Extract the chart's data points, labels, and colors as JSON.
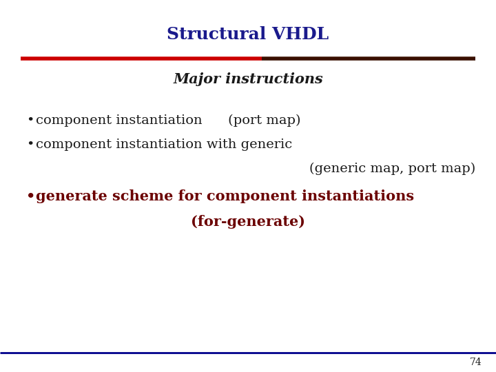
{
  "title": "Structural VHDL",
  "title_color": "#1a1a8c",
  "subtitle": "Major instructions",
  "subtitle_color": "#1a1a1a",
  "bg_color": "#ffffff",
  "separator_color_left": "#cc0000",
  "separator_color_right": "#3a1000",
  "bottom_line_color": "#00008b",
  "bullet_color": "#1a1a1a",
  "bullet3_color": "#6b0000",
  "page_number": "74",
  "page_number_color": "#1a1a1a",
  "title_fontsize": 18,
  "subtitle_fontsize": 15,
  "body_fontsize": 14,
  "bold_fontsize": 15
}
